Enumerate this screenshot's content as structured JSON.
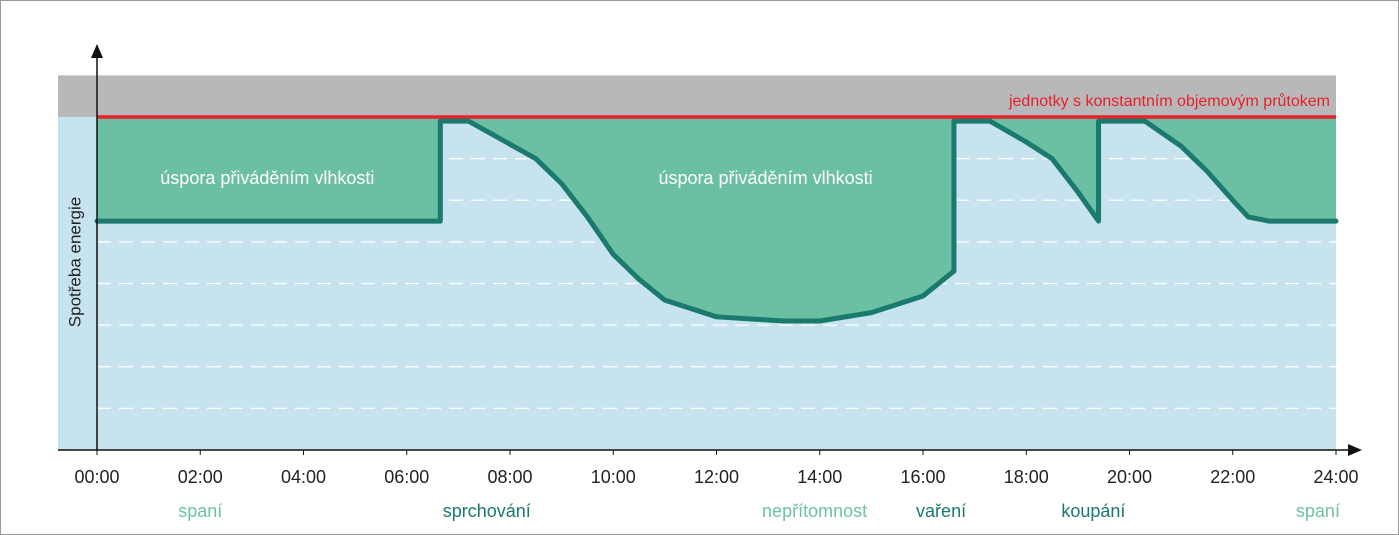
{
  "chart_data": {
    "type": "line",
    "ylabel": "Spotřeba energie",
    "x": [
      0,
      6.65,
      6.65,
      7.2,
      8.5,
      9,
      9.5,
      10,
      10.5,
      11,
      12,
      13.3,
      14,
      15,
      16,
      16.6,
      16.6,
      17.3,
      18,
      18.5,
      19,
      19.4,
      19.4,
      20.3,
      21,
      21.5,
      22,
      22.3,
      22.7,
      24
    ],
    "values": [
      5.5,
      5.5,
      7.9,
      7.9,
      7.0,
      6.4,
      5.6,
      4.7,
      4.1,
      3.6,
      3.2,
      3.1,
      3.1,
      3.3,
      3.7,
      4.3,
      7.9,
      7.9,
      7.4,
      7.0,
      6.2,
      5.5,
      7.9,
      7.9,
      7.3,
      6.7,
      6.0,
      5.6,
      5.5,
      5.5
    ],
    "color": "#1a7a6e",
    "fill_color": "#6bbfa3",
    "background_color": "#c7e3f0",
    "band_color": "#b8b8ba",
    "reference_line": {
      "value": 8,
      "label": "jednotky s konstantním objemovým průtokem",
      "color": "#e8202a"
    },
    "area_labels": [
      {
        "label": "úspora přiváděním vlhkosti",
        "x": 3.3,
        "y": 6.5
      },
      {
        "label": "úspora přiváděním vlhkosti",
        "x": 12.95,
        "y": 6.5
      }
    ],
    "activities": [
      {
        "label": "spaní",
        "x": 2,
        "color": "#6cc3a0"
      },
      {
        "label": "sprchování",
        "x": 7.55,
        "color": "#1a7a6e"
      },
      {
        "label": "nepřítomnost",
        "x": 13.9,
        "color": "#6cc3a0"
      },
      {
        "label": "vaření",
        "x": 16.35,
        "color": "#1a7a6e"
      },
      {
        "label": "koupání",
        "x": 19.3,
        "color": "#1a7a6e"
      },
      {
        "label": "spaní",
        "x": 23.65,
        "color": "#6cc3a0"
      }
    ],
    "xlim": [
      0,
      24
    ],
    "ylim": [
      0,
      9
    ],
    "xticks": [
      {
        "value": 0,
        "label": "00:00"
      },
      {
        "value": 2,
        "label": "02:00"
      },
      {
        "value": 4,
        "label": "04:00"
      },
      {
        "value": 6,
        "label": "06:00"
      },
      {
        "value": 8,
        "label": "08:00"
      },
      {
        "value": 10,
        "label": "10:00"
      },
      {
        "value": 12,
        "label": "12:00"
      },
      {
        "value": 14,
        "label": "14:00"
      },
      {
        "value": 16,
        "label": "16:00"
      },
      {
        "value": 18,
        "label": "18:00"
      },
      {
        "value": 20,
        "label": "20:00"
      },
      {
        "value": 22,
        "label": "22:00"
      },
      {
        "value": 24,
        "label": "24:00"
      }
    ],
    "gridlines": [
      1,
      2,
      3,
      4,
      5,
      6,
      7
    ]
  }
}
